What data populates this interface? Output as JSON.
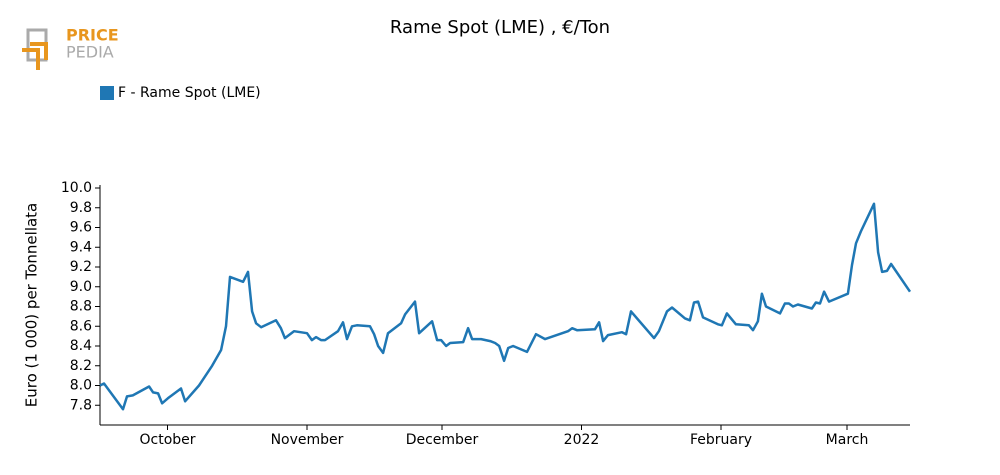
{
  "logo": {
    "top": "PRICE",
    "bottom": "PEDIA"
  },
  "chart_data": {
    "type": "line",
    "title": "Rame Spot (LME) , €/Ton",
    "y_label": "Euro (1 000) per Tonnellata",
    "legend": "top-left",
    "grid": false,
    "xlim": [
      0,
      180
    ],
    "xticks": [
      {
        "value": 15,
        "label": "October"
      },
      {
        "value": 46,
        "label": "November"
      },
      {
        "value": 76,
        "label": "December"
      },
      {
        "value": 107,
        "label": "2022"
      },
      {
        "value": 138,
        "label": "February"
      },
      {
        "value": 166,
        "label": "March"
      }
    ],
    "ylim": [
      7.6,
      10.0
    ],
    "yticks": [
      7.8,
      {
        "value": 8.0,
        "label": "8.0"
      },
      8.2,
      8.4,
      8.6,
      8.8,
      {
        "value": 9.0,
        "label": "9.0"
      },
      9.2,
      9.4,
      9.6,
      9.8,
      {
        "value": 10.0,
        "label": "10.0"
      }
    ],
    "x": [
      0,
      0.9,
      5.1,
      6,
      7.3,
      10.9,
      11.8,
      12.9,
      13.8,
      15.1,
      18,
      18.9,
      22,
      24.9,
      26.9,
      28,
      28.9,
      31.8,
      32.9,
      33.8,
      34.7,
      35.8,
      39.1,
      40.2,
      41.1,
      43.1,
      46,
      47.1,
      48,
      49.1,
      50,
      52.9,
      54,
      54.9,
      56,
      57.1,
      60,
      60.9,
      61.8,
      62.9,
      64,
      66.9,
      67.8,
      70,
      70.9,
      73.8,
      74.9,
      75.8,
      76.9,
      77.8,
      80.7,
      81.8,
      82.7,
      84.7,
      86.7,
      87.8,
      88.7,
      89.8,
      90.7,
      91.8,
      94.9,
      96.9,
      98.9,
      104,
      104.9,
      106,
      110,
      110.9,
      111.8,
      112.9,
      116,
      116.9,
      118,
      123.1,
      124.2,
      126,
      127.1,
      130,
      131.1,
      132,
      132.9,
      134,
      137.3,
      138.2,
      139.3,
      141.3,
      144.2,
      145.1,
      146.2,
      147.1,
      148,
      151.1,
      152.2,
      153.1,
      154,
      155.1,
      158.2,
      159.1,
      160,
      160.9,
      162,
      166.2,
      167.1,
      168,
      169.1,
      172,
      172.9,
      173.8,
      174.9,
      175.8,
      180
    ],
    "series": [
      {
        "name": "F - Rame Spot (LME)",
        "color": "#1f77b4",
        "values": [
          8.0,
          8.02,
          7.76,
          7.89,
          7.9,
          7.99,
          7.93,
          7.92,
          7.82,
          7.87,
          7.97,
          7.84,
          8.0,
          8.2,
          8.36,
          8.6,
          9.1,
          9.05,
          9.15,
          8.75,
          8.63,
          8.59,
          8.66,
          8.58,
          8.48,
          8.55,
          8.53,
          8.46,
          8.49,
          8.46,
          8.46,
          8.55,
          8.64,
          8.47,
          8.6,
          8.61,
          8.6,
          8.52,
          8.4,
          8.33,
          8.53,
          8.63,
          8.72,
          8.85,
          8.53,
          8.65,
          8.46,
          8.46,
          8.4,
          8.43,
          8.44,
          8.58,
          8.47,
          8.47,
          8.45,
          8.43,
          8.4,
          8.25,
          8.38,
          8.4,
          8.34,
          8.52,
          8.47,
          8.55,
          8.58,
          8.56,
          8.57,
          8.64,
          8.45,
          8.51,
          8.54,
          8.52,
          8.75,
          8.48,
          8.55,
          8.75,
          8.79,
          8.68,
          8.66,
          8.84,
          8.85,
          8.69,
          8.62,
          8.61,
          8.73,
          8.62,
          8.61,
          8.56,
          8.65,
          8.93,
          8.8,
          8.73,
          8.83,
          8.83,
          8.8,
          8.82,
          8.78,
          8.84,
          8.83,
          8.95,
          8.85,
          8.93,
          9.22,
          9.44,
          9.56,
          9.84,
          9.35,
          9.15,
          9.16,
          9.23,
          8.95
        ]
      }
    ]
  }
}
